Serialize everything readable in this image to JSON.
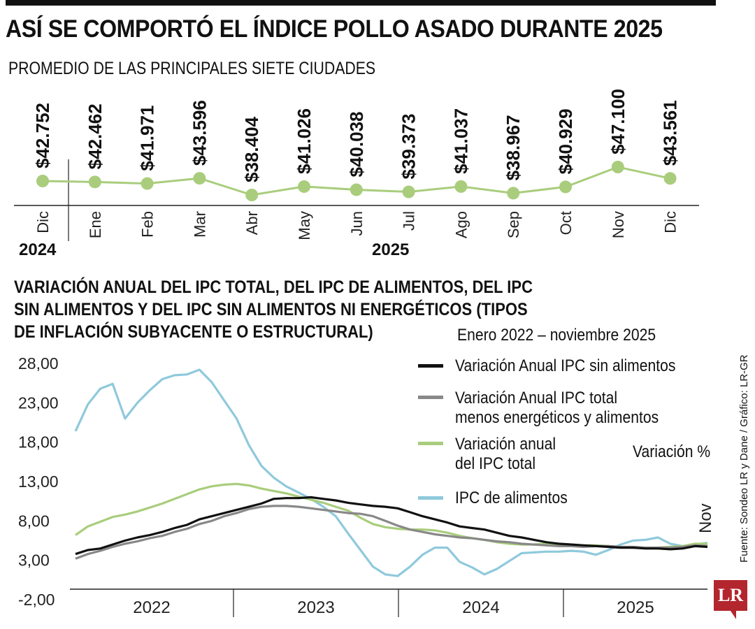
{
  "header": {
    "title": "ASÍ SE COMPORTÓ EL ÍNDICE POLLO ASADO DURANTE 2025",
    "subtitle": "PROMEDIO DE LAS PRINCIPALES SIETE CIUDADES"
  },
  "section2": {
    "title_lines": [
      "VARIACIÓN ANUAL DEL IPC TOTAL, DEL IPC DE ALIMENTOS, DEL IPC",
      "SIN ALIMENTOS Y DEL IPC SIN ALIMENTOS NI ENERGÉTICOS (TIPOS",
      "DE INFLACIÓN SUBYACENTE O ESTRUCTURAL)"
    ],
    "period": "Enero 2022 – noviembre 2025",
    "unit_label": "Variación %"
  },
  "source": "Fuente: Sondeo LR y Dane / Gráfico: LR-GR",
  "logo": "LR",
  "chart_data": [
    {
      "type": "line",
      "title": "ASÍ SE COMPORTÓ EL ÍNDICE POLLO ASADO DURANTE 2025",
      "subtitle": "PROMEDIO DE LAS PRINCIPALES SIETE CIUDADES",
      "categories": [
        "Dic",
        "Ene",
        "Feb",
        "Mar",
        "Abr",
        "May",
        "Jun",
        "Jul",
        "Ago",
        "Sep",
        "Oct",
        "Nov",
        "Dic"
      ],
      "values": [
        42752,
        42462,
        41971,
        43596,
        38404,
        41026,
        40038,
        39373,
        41037,
        38967,
        40929,
        47100,
        43561
      ],
      "data_labels": [
        "$42.752",
        "$42.462",
        "$41.971",
        "$43.596",
        "$38.404",
        "$41.026",
        "$40.038",
        "$39.373",
        "$41.037",
        "$38.967",
        "$40.929",
        "$47.100",
        "$43.561"
      ],
      "year_labels": [
        "2024",
        "2025"
      ],
      "color": "#a9cd7c"
    },
    {
      "type": "line",
      "title": "VARIACIÓN ANUAL DEL IPC TOTAL, DEL IPC DE ALIMENTOS, DEL IPC SIN ALIMENTOS Y DEL IPC SIN ALIMENTOS NI ENERGÉTICOS (TIPOS DE INFLACIÓN SUBYACENTE O ESTRUCTURAL)",
      "x_start": "2022-01",
      "x_end": "2025-11",
      "year_labels": [
        "2022",
        "2023",
        "2024",
        "2025"
      ],
      "yticks": [
        "28,00",
        "23,00",
        "18,00",
        "13,00",
        "8,00",
        "3,00",
        "-2,00"
      ],
      "ylim": [
        -2,
        28
      ],
      "annotation": "Nov",
      "series": [
        {
          "name": "Variación Anual IPC sin alimentos",
          "color": "#111111",
          "values": [
            3.8,
            4.3,
            4.5,
            5.0,
            5.5,
            5.9,
            6.2,
            6.6,
            7.1,
            7.5,
            8.2,
            8.6,
            9.0,
            9.4,
            9.8,
            10.2,
            10.8,
            10.9,
            10.9,
            11.0,
            10.8,
            10.6,
            10.3,
            10.1,
            9.9,
            9.8,
            9.6,
            9.1,
            8.6,
            8.2,
            7.8,
            7.3,
            7.1,
            6.9,
            6.5,
            6.1,
            5.9,
            5.6,
            5.3,
            5.1,
            5.0,
            4.9,
            4.8,
            4.7,
            4.6,
            4.6,
            4.5,
            4.5,
            4.4,
            4.5,
            4.8,
            4.7
          ]
        },
        {
          "name": "Variación Anual IPC total menos energéticos y alimentos",
          "color": "#888888",
          "values": [
            3.2,
            3.8,
            4.2,
            4.7,
            5.1,
            5.4,
            5.8,
            6.1,
            6.6,
            7.0,
            7.6,
            8.0,
            8.6,
            9.0,
            9.5,
            9.8,
            9.9,
            9.9,
            9.8,
            9.6,
            9.4,
            9.2,
            9.0,
            8.9,
            8.6,
            8.0,
            7.4,
            6.9,
            6.6,
            6.3,
            6.1,
            5.9,
            5.8,
            5.6,
            5.4,
            5.3,
            5.1,
            5.0,
            4.9,
            4.8,
            4.8,
            4.7,
            4.8,
            4.8,
            4.7,
            4.7,
            4.6,
            4.6,
            4.6,
            4.7,
            4.9,
            4.8
          ]
        },
        {
          "name": "Variación anual del IPC total",
          "color": "#a9cd7c",
          "values": [
            6.2,
            7.3,
            7.9,
            8.5,
            8.8,
            9.2,
            9.7,
            10.2,
            10.8,
            11.4,
            12.0,
            12.4,
            12.6,
            12.7,
            12.5,
            12.1,
            11.8,
            11.5,
            11.1,
            10.7,
            10.3,
            9.8,
            9.3,
            8.4,
            7.6,
            7.2,
            7.0,
            6.9,
            6.9,
            6.8,
            6.5,
            6.1,
            5.8,
            5.6,
            5.3,
            5.1,
            5.0,
            5.0,
            5.1,
            5.1,
            5.0,
            4.9,
            4.9,
            4.8,
            4.7,
            4.6,
            4.6,
            4.6,
            4.7,
            4.8,
            5.1,
            5.1
          ]
        },
        {
          "name": "IPC de alimentos",
          "color": "#8fc9dc",
          "values": [
            19.4,
            22.8,
            24.8,
            25.4,
            21.0,
            23.0,
            24.6,
            26.0,
            26.5,
            26.6,
            27.2,
            25.6,
            23.3,
            21.0,
            17.6,
            15.0,
            13.5,
            12.4,
            11.6,
            10.8,
            9.8,
            8.6,
            6.4,
            4.3,
            2.2,
            1.2,
            1.0,
            2.2,
            3.7,
            4.6,
            4.6,
            2.8,
            2.1,
            1.2,
            1.9,
            2.9,
            3.9,
            4.0,
            4.1,
            4.1,
            4.2,
            4.1,
            3.7,
            4.3,
            5.0,
            5.5,
            5.6,
            5.9,
            5.1,
            4.8,
            5.0,
            5.2
          ]
        }
      ]
    }
  ]
}
